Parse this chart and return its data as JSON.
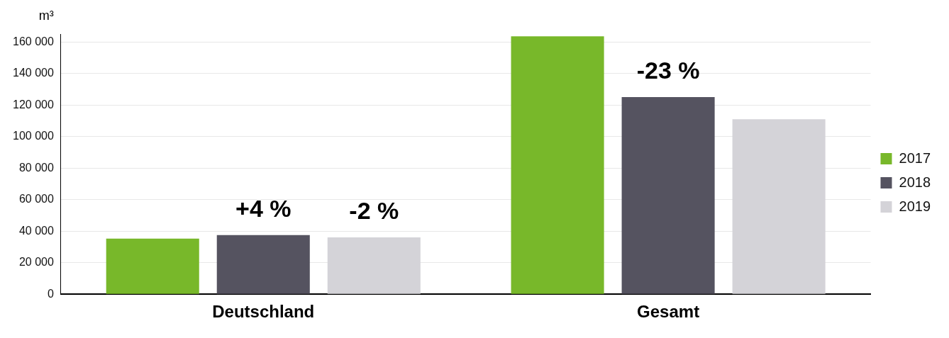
{
  "chart_data": {
    "type": "bar",
    "ylabel": "m³",
    "categories": [
      "Deutschland",
      "Gesamt"
    ],
    "series": [
      {
        "name": "2017",
        "color": "#78b82a",
        "values": [
          35300,
          163500
        ]
      },
      {
        "name": "2018",
        "color": "#555360",
        "values": [
          37500,
          125000
        ]
      },
      {
        "name": "2019",
        "color": "#d4d3d8",
        "values": [
          36000,
          111000
        ]
      }
    ],
    "annotations": [
      {
        "text": "+4 %",
        "x": "Deutschland",
        "y": 37500
      },
      "-2 %",
      {
        "text": "-23 %",
        "x": "Gesamt",
        "y": 125000
      }
    ],
    "ylim": [
      0,
      165000
    ],
    "yticks": [
      {
        "value": 0,
        "label": "0"
      },
      {
        "value": 20000,
        "label": "20 000"
      },
      {
        "value": 40000,
        "label": "40 000"
      },
      {
        "value": 60000,
        "label": "60 000"
      },
      {
        "value": 80000,
        "label": "80 000"
      },
      {
        "value": 100000,
        "label": "100 000"
      },
      {
        "value": 120000,
        "label": "120 000"
      },
      {
        "value": 140000,
        "label": "140 000"
      },
      {
        "value": 160000,
        "label": "160 000"
      }
    ],
    "grid": "y",
    "legend": "right"
  }
}
